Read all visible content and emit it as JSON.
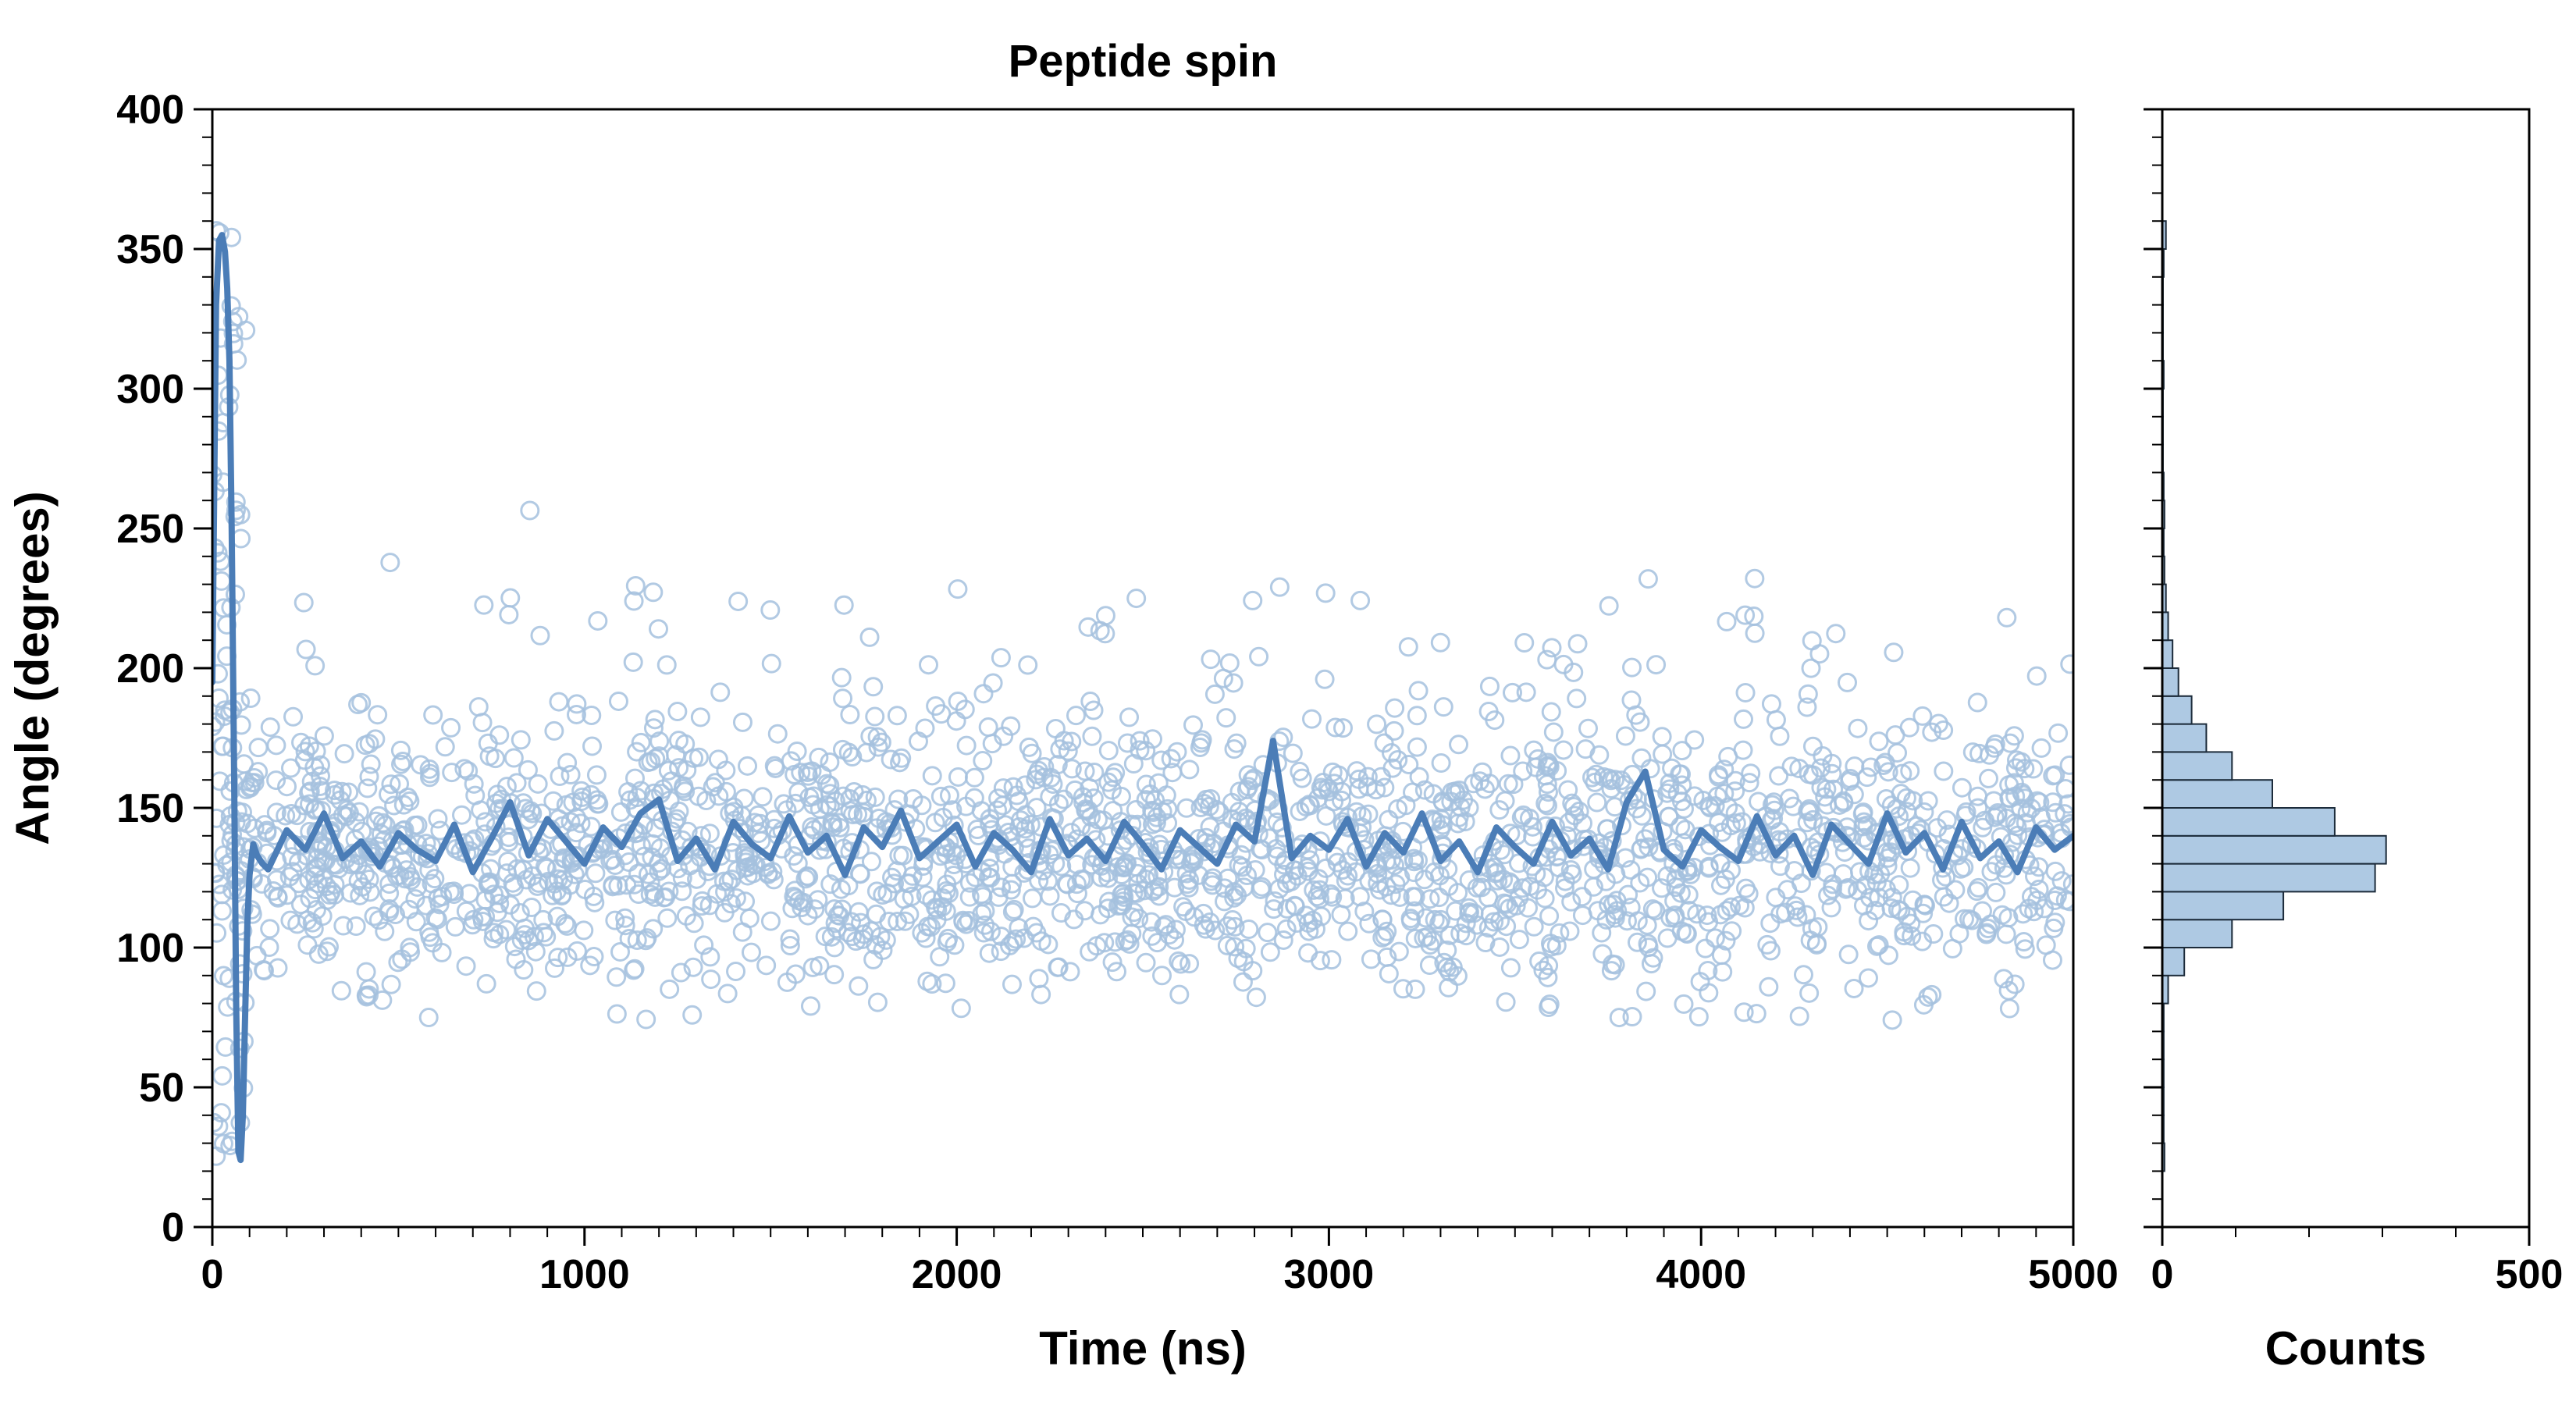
{
  "page": {
    "title": "Peptide spin"
  },
  "colors": {
    "scatter_stroke": "#a4c1de",
    "line": "#4b7db7",
    "hist_fill": "#aac6e2",
    "hist_edge": "#1c2b3a",
    "axis": "#000000"
  },
  "chart_data": [
    {
      "type": "scatter",
      "title": "Peptide spin",
      "xlabel": "Time (ns)",
      "ylabel": "Angle (degrees)",
      "xlim": [
        0,
        5000
      ],
      "ylim": [
        0,
        400
      ],
      "x_ticks": [
        0,
        1000,
        2000,
        3000,
        4000,
        5000
      ],
      "y_ticks": [
        0,
        50,
        100,
        150,
        200,
        250,
        300,
        350,
        400
      ],
      "x_minor_step": 100,
      "y_minor_step": 10,
      "grid": false,
      "legend": "none",
      "series": [
        {
          "name": "angle-samples",
          "style": "open-circles",
          "generation": {
            "seed": 42,
            "n": 2200,
            "mean": 135,
            "sigma": 24,
            "min_angle": 74,
            "upper_outlier_rate": 0.03,
            "upper_outlier_range": [
              185,
              230
            ],
            "extreme_outlier_rate": 0.004,
            "extreme_outlier_range": [
              230,
              262
            ],
            "transient": {
              "t_range": [
                0,
                90
              ],
              "n": 70,
              "angle_range": [
                20,
                358
              ]
            }
          }
        },
        {
          "name": "running-mean",
          "style": "line",
          "points": [
            [
              0,
              195
            ],
            [
              10,
              330
            ],
            [
              18,
              353
            ],
            [
              26,
              355
            ],
            [
              34,
              349
            ],
            [
              40,
              336
            ],
            [
              46,
              310
            ],
            [
              52,
              250
            ],
            [
              58,
              170
            ],
            [
              64,
              80
            ],
            [
              70,
              27
            ],
            [
              76,
              24
            ],
            [
              82,
              40
            ],
            [
              88,
              75
            ],
            [
              94,
              108
            ],
            [
              100,
              126
            ],
            [
              110,
              137
            ],
            [
              120,
              133
            ],
            [
              135,
              130
            ],
            [
              150,
              128
            ],
            [
              200,
              142
            ],
            [
              250,
              135
            ],
            [
              300,
              148
            ],
            [
              350,
              132
            ],
            [
              400,
              138
            ],
            [
              450,
              129
            ],
            [
              500,
              141
            ],
            [
              550,
              135
            ],
            [
              600,
              131
            ],
            [
              650,
              144
            ],
            [
              700,
              127
            ],
            [
              750,
              139
            ],
            [
              800,
              152
            ],
            [
              850,
              133
            ],
            [
              900,
              146
            ],
            [
              950,
              138
            ],
            [
              1000,
              130
            ],
            [
              1050,
              143
            ],
            [
              1100,
              136
            ],
            [
              1150,
              148
            ],
            [
              1200,
              153
            ],
            [
              1250,
              131
            ],
            [
              1300,
              139
            ],
            [
              1350,
              128
            ],
            [
              1400,
              145
            ],
            [
              1450,
              137
            ],
            [
              1500,
              132
            ],
            [
              1550,
              147
            ],
            [
              1600,
              134
            ],
            [
              1650,
              140
            ],
            [
              1700,
              126
            ],
            [
              1750,
              143
            ],
            [
              1800,
              136
            ],
            [
              1850,
              149
            ],
            [
              1900,
              132
            ],
            [
              1950,
              138
            ],
            [
              2000,
              144
            ],
            [
              2050,
              129
            ],
            [
              2100,
              141
            ],
            [
              2150,
              135
            ],
            [
              2200,
              127
            ],
            [
              2250,
              146
            ],
            [
              2300,
              133
            ],
            [
              2350,
              139
            ],
            [
              2400,
              131
            ],
            [
              2450,
              145
            ],
            [
              2500,
              137
            ],
            [
              2550,
              128
            ],
            [
              2600,
              142
            ],
            [
              2650,
              136
            ],
            [
              2700,
              130
            ],
            [
              2750,
              144
            ],
            [
              2800,
              138
            ],
            [
              2850,
              174
            ],
            [
              2900,
              132
            ],
            [
              2950,
              140
            ],
            [
              3000,
              135
            ],
            [
              3050,
              146
            ],
            [
              3100,
              129
            ],
            [
              3150,
              141
            ],
            [
              3200,
              134
            ],
            [
              3250,
              148
            ],
            [
              3300,
              131
            ],
            [
              3350,
              138
            ],
            [
              3400,
              127
            ],
            [
              3450,
              143
            ],
            [
              3500,
              136
            ],
            [
              3550,
              130
            ],
            [
              3600,
              145
            ],
            [
              3650,
              133
            ],
            [
              3700,
              139
            ],
            [
              3750,
              128
            ],
            [
              3800,
              152
            ],
            [
              3850,
              163
            ],
            [
              3900,
              135
            ],
            [
              3950,
              129
            ],
            [
              4000,
              142
            ],
            [
              4050,
              136
            ],
            [
              4100,
              131
            ],
            [
              4150,
              147
            ],
            [
              4200,
              133
            ],
            [
              4250,
              140
            ],
            [
              4300,
              126
            ],
            [
              4350,
              144
            ],
            [
              4400,
              137
            ],
            [
              4450,
              130
            ],
            [
              4500,
              148
            ],
            [
              4550,
              134
            ],
            [
              4600,
              141
            ],
            [
              4650,
              128
            ],
            [
              4700,
              145
            ],
            [
              4750,
              132
            ],
            [
              4800,
              138
            ],
            [
              4850,
              127
            ],
            [
              4900,
              143
            ],
            [
              4950,
              135
            ],
            [
              5000,
              140
            ]
          ]
        }
      ]
    },
    {
      "type": "histogram",
      "orientation": "horizontal",
      "xlabel": "Counts",
      "xlim": [
        0,
        500
      ],
      "x_ticks": [
        0,
        500
      ],
      "x_minor_step": 100,
      "ylim": [
        0,
        400
      ],
      "y_minor_step": 10,
      "y_major_step": 50,
      "bin_width": 10,
      "bin_lo": [
        20,
        30,
        40,
        50,
        60,
        70,
        80,
        90,
        100,
        110,
        120,
        130,
        140,
        150,
        160,
        170,
        180,
        190,
        200,
        210,
        220,
        230,
        240,
        250,
        260,
        270,
        280,
        290,
        300,
        310,
        320,
        330,
        340,
        350
      ],
      "counts": [
        3,
        2,
        2,
        2,
        2,
        2,
        8,
        30,
        95,
        165,
        290,
        305,
        235,
        150,
        95,
        60,
        40,
        22,
        14,
        8,
        5,
        3,
        2,
        3,
        2,
        1,
        1,
        1,
        2,
        1,
        1,
        1,
        2,
        5
      ]
    }
  ]
}
